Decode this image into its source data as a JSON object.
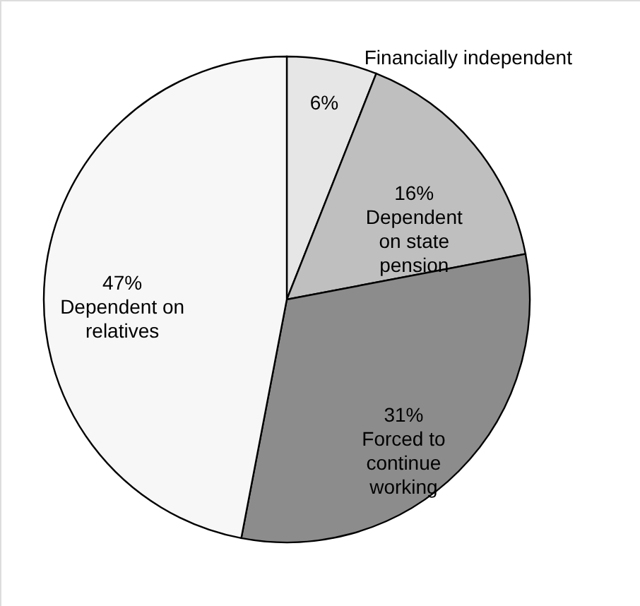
{
  "chart_data": {
    "type": "pie",
    "categories": [
      "Financially independent",
      "Dependent\non state\npension",
      "Forced to\ncontinue\nworking",
      "Dependent on\nrelatives"
    ],
    "values": [
      6,
      16,
      31,
      47
    ],
    "value_labels": [
      "6%",
      "16%",
      "31%",
      "47%"
    ],
    "colors": [
      "#e6e6e6",
      "#bfbfbf",
      "#8c8c8c",
      "#f7f7f7"
    ]
  }
}
